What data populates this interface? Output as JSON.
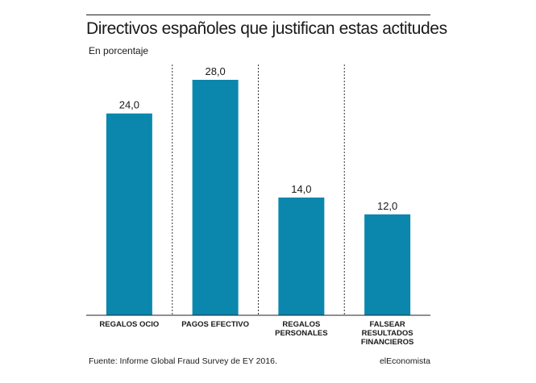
{
  "header": {
    "title": "Directivos españoles que justifican estas actitudes",
    "subtitle": "En porcentaje"
  },
  "chart_data": {
    "type": "bar",
    "title": "Directivos españoles que justifican estas actitudes",
    "ylabel": "En porcentaje",
    "categories": [
      "REGALOS OCIO",
      "PAGOS EFECTIVO",
      "REGALOS PERSONALES",
      "FALSEAR RESULTADOS FINANCIEROS"
    ],
    "category_lines": [
      [
        "REGALOS OCIO"
      ],
      [
        "PAGOS EFECTIVO"
      ],
      [
        "REGALOS",
        "PERSONALES"
      ],
      [
        "FALSEAR",
        "RESULTADOS",
        "FINANCIEROS"
      ]
    ],
    "values": [
      24.0,
      28.0,
      14.0,
      12.0
    ],
    "value_labels": [
      "24,0",
      "28,0",
      "14,0",
      "12,0"
    ],
    "ylim": [
      0,
      28
    ],
    "bar_color": "#0b87ad",
    "grid": false
  },
  "footer": {
    "source": "Fuente: Informe Global Fraud Survey de EY 2016.",
    "brand": "elEconomista"
  }
}
